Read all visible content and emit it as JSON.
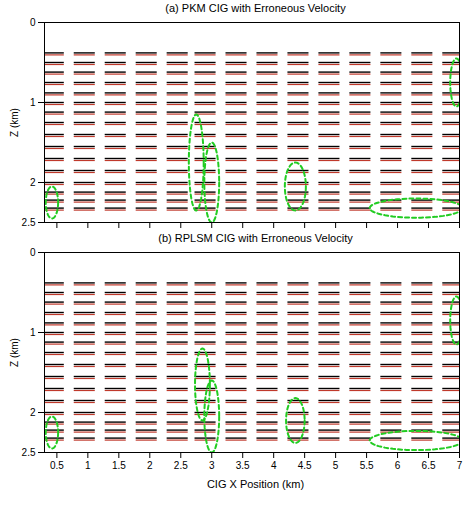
{
  "chart_data": [
    {
      "type": "image",
      "title": "(a) PKM CIG with Erroneous Velocity",
      "y_label": "Z (km)",
      "xlim": [
        0.3,
        7.0
      ],
      "ylim": [
        0,
        2.5
      ],
      "xticks": [
        0.5,
        1,
        1.5,
        2,
        2.5,
        3,
        3.5,
        4,
        4.5,
        5,
        5.5,
        6,
        6.5,
        7
      ],
      "yticks": [
        0,
        1,
        2,
        2.5
      ],
      "tick_labels": "y",
      "colors": [
        "#000000",
        "#c0392b"
      ],
      "gathers": [
        0.45,
        0.95,
        1.45,
        1.95,
        2.45,
        2.9,
        3.4,
        3.9,
        4.4,
        4.9,
        5.4,
        5.9,
        6.4,
        6.9
      ],
      "reflector_depths": [
        0.38,
        0.5,
        0.62,
        0.75,
        0.88,
        1.0,
        1.12,
        1.25,
        1.4,
        1.55,
        1.7,
        1.85,
        2.0,
        2.12,
        2.22,
        2.32
      ],
      "annotations": {
        "color": "#22cc22",
        "line_style": "dashed",
        "ellipses": [
          {
            "cx": 0.42,
            "cy": 2.25,
            "rx": 0.1,
            "ry": 0.2
          },
          {
            "cx": 2.75,
            "cy": 1.75,
            "rx": 0.12,
            "ry": 0.6
          },
          {
            "cx": 3.0,
            "cy": 2.0,
            "rx": 0.12,
            "ry": 0.5
          },
          {
            "cx": 4.35,
            "cy": 2.05,
            "rx": 0.17,
            "ry": 0.3
          },
          {
            "cx": 6.3,
            "cy": 2.32,
            "rx": 0.75,
            "ry": 0.12
          },
          {
            "cx": 6.95,
            "cy": 0.75,
            "rx": 0.1,
            "ry": 0.3
          }
        ]
      }
    },
    {
      "type": "image",
      "title": "(b) RPLSM CIG with Erroneous Velocity",
      "x_label": "CIG X Position (km)",
      "y_label": "Z (km)",
      "xlim": [
        0.3,
        7.0
      ],
      "ylim": [
        0,
        2.5
      ],
      "xticks": [
        0.5,
        1,
        1.5,
        2,
        2.5,
        3,
        3.5,
        4,
        4.5,
        5,
        5.5,
        6,
        6.5,
        7
      ],
      "yticks": [
        0,
        1,
        2,
        2.5
      ],
      "tick_labels": true,
      "colors": [
        "#000000",
        "#c0392b"
      ],
      "gathers": [
        0.45,
        0.95,
        1.45,
        1.95,
        2.45,
        2.9,
        3.4,
        3.9,
        4.4,
        4.9,
        5.4,
        5.9,
        6.4,
        6.9
      ],
      "reflector_depths": [
        0.38,
        0.5,
        0.62,
        0.75,
        0.88,
        1.0,
        1.12,
        1.25,
        1.4,
        1.55,
        1.7,
        1.85,
        2.0,
        2.12,
        2.22,
        2.32
      ],
      "annotations": {
        "color": "#22cc22",
        "line_style": "dashed",
        "ellipses": [
          {
            "cx": 0.42,
            "cy": 2.25,
            "rx": 0.1,
            "ry": 0.2
          },
          {
            "cx": 2.85,
            "cy": 1.65,
            "rx": 0.12,
            "ry": 0.45
          },
          {
            "cx": 3.0,
            "cy": 2.05,
            "rx": 0.12,
            "ry": 0.45
          },
          {
            "cx": 4.35,
            "cy": 2.1,
            "rx": 0.15,
            "ry": 0.28
          },
          {
            "cx": 6.3,
            "cy": 2.35,
            "rx": 0.75,
            "ry": 0.12
          },
          {
            "cx": 6.95,
            "cy": 0.85,
            "rx": 0.1,
            "ry": 0.3
          }
        ]
      }
    }
  ]
}
